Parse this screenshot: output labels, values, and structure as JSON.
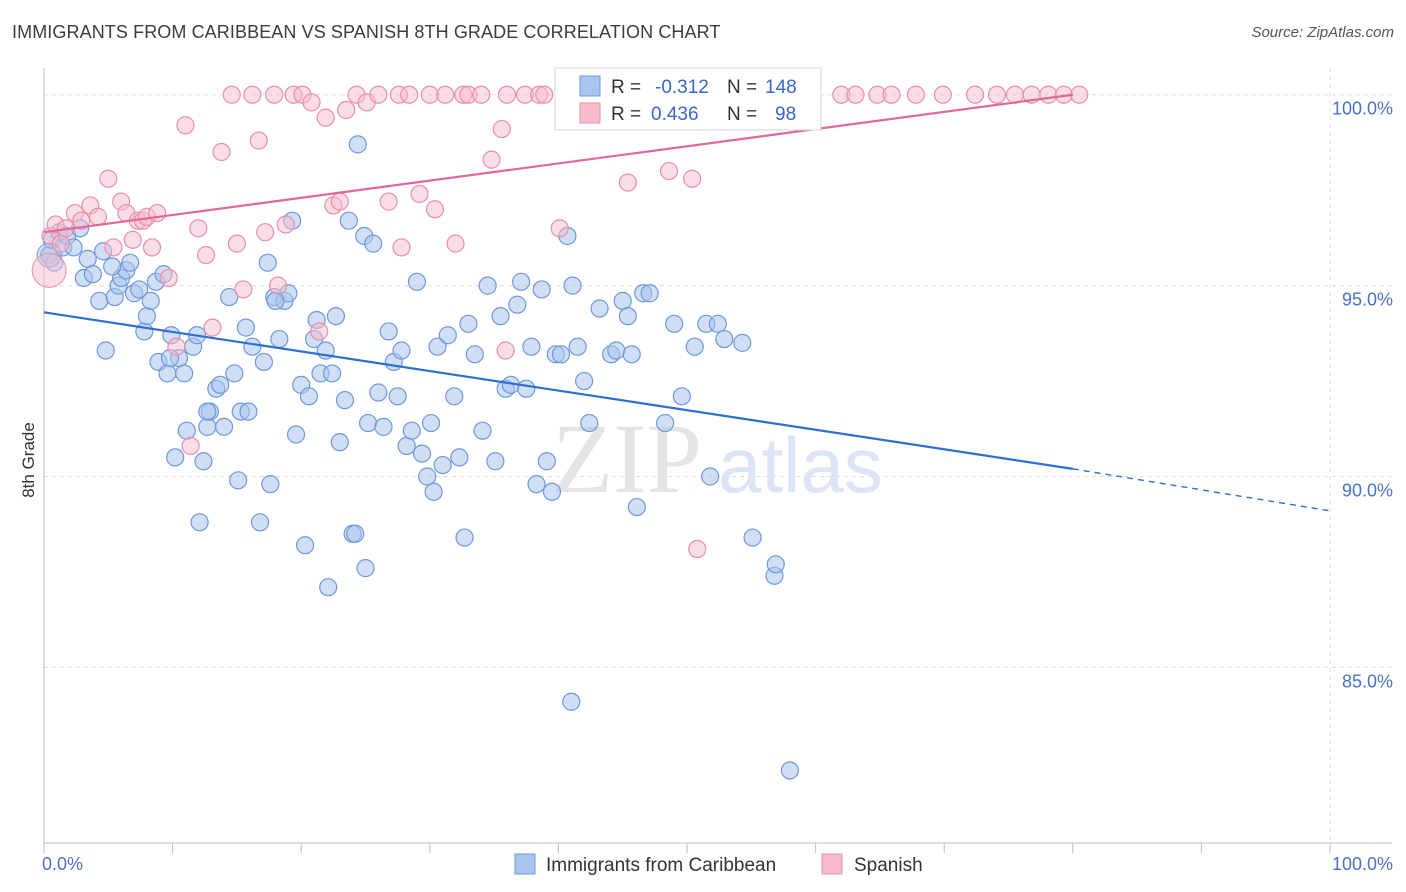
{
  "title": "IMMIGRANTS FROM CARIBBEAN VS SPANISH 8TH GRADE CORRELATION CHART",
  "source": "Source: ZipAtlas.com",
  "watermark": {
    "zip": "ZIP",
    "atlas": "atlas"
  },
  "colors": {
    "blue_fill": "#a9c4ef",
    "blue_stroke": "#6f98dc",
    "blue_line": "#2e6fd0",
    "pink_fill": "#f6bccb",
    "pink_stroke": "#ea8fa8",
    "pink_line": "#e0679a",
    "grid": "#dcdcdc",
    "tick_text": "#4a72c4"
  },
  "legend": {
    "rows": [
      {
        "series": "Immigrants from Caribbean",
        "r_label": "R =",
        "r_value": "-0.312",
        "n_label": "N =",
        "n_value": "148"
      },
      {
        "series": "Spanish",
        "r_label": "R =",
        "r_value": "0.436",
        "n_label": "N =",
        "n_value": "98"
      }
    ]
  },
  "chart_data": {
    "type": "scatter",
    "title": "IMMIGRANTS FROM CARIBBEAN VS SPANISH 8TH GRADE CORRELATION CHART",
    "xlabel": "",
    "ylabel": "8th Grade",
    "xlim": [
      0,
      100
    ],
    "ylim": [
      80.4,
      100.7
    ],
    "x_tick_labels": [
      "0.0%",
      "100.0%"
    ],
    "y_ticks": [
      85,
      90,
      95,
      100
    ],
    "y_tick_labels": [
      "85.0%",
      "90.0%",
      "95.0%",
      "100.0%"
    ],
    "grid": true,
    "legend_position": "bottom-center",
    "series": [
      {
        "name": "Immigrants from Caribbean",
        "color": "#a9c4ef",
        "r": -0.312,
        "n": 148,
        "trend": {
          "x0": 0,
          "y0": 94.3,
          "x1": 80,
          "y1": 90.2,
          "dashed_to_x": 100,
          "dashed_y": 89.1
        },
        "points": [
          [
            0.4,
            95.8
          ],
          [
            0.6,
            96.2
          ],
          [
            0.8,
            95.6
          ],
          [
            1.2,
            96.4
          ],
          [
            1.5,
            96.0
          ],
          [
            1.8,
            96.3
          ],
          [
            2.3,
            96.0
          ],
          [
            2.8,
            96.5
          ],
          [
            3.1,
            95.2
          ],
          [
            3.4,
            95.7
          ],
          [
            3.8,
            95.3
          ],
          [
            4.3,
            94.6
          ],
          [
            4.6,
            95.9
          ],
          [
            4.8,
            93.3
          ],
          [
            5.5,
            94.7
          ],
          [
            5.8,
            95.0
          ],
          [
            6.0,
            95.2
          ],
          [
            6.4,
            95.4
          ],
          [
            6.7,
            95.6
          ],
          [
            7.0,
            94.8
          ],
          [
            7.4,
            94.9
          ],
          [
            7.8,
            93.8
          ],
          [
            8.0,
            94.2
          ],
          [
            8.3,
            94.6
          ],
          [
            8.7,
            95.1
          ],
          [
            8.9,
            93.0
          ],
          [
            9.3,
            95.3
          ],
          [
            9.6,
            92.7
          ],
          [
            9.9,
            93.7
          ],
          [
            10.2,
            90.5
          ],
          [
            10.5,
            93.1
          ],
          [
            10.9,
            92.7
          ],
          [
            11.1,
            91.2
          ],
          [
            11.6,
            93.4
          ],
          [
            11.9,
            93.7
          ],
          [
            12.1,
            88.8
          ],
          [
            12.4,
            90.4
          ],
          [
            12.7,
            91.3
          ],
          [
            12.9,
            91.7
          ],
          [
            13.4,
            92.3
          ],
          [
            13.7,
            92.4
          ],
          [
            14.0,
            91.3
          ],
          [
            14.4,
            94.7
          ],
          [
            14.8,
            92.7
          ],
          [
            15.1,
            89.9
          ],
          [
            15.3,
            91.7
          ],
          [
            15.7,
            93.9
          ],
          [
            15.9,
            91.7
          ],
          [
            16.2,
            93.4
          ],
          [
            16.8,
            88.8
          ],
          [
            17.1,
            93.0
          ],
          [
            17.4,
            95.6
          ],
          [
            17.6,
            89.8
          ],
          [
            17.9,
            94.7
          ],
          [
            18.3,
            93.6
          ],
          [
            18.7,
            94.6
          ],
          [
            19.0,
            94.8
          ],
          [
            19.3,
            96.7
          ],
          [
            19.6,
            91.1
          ],
          [
            20.0,
            92.4
          ],
          [
            20.3,
            88.2
          ],
          [
            20.6,
            92.1
          ],
          [
            21.0,
            93.6
          ],
          [
            21.2,
            94.1
          ],
          [
            21.5,
            92.7
          ],
          [
            21.9,
            93.3
          ],
          [
            22.1,
            87.1
          ],
          [
            22.4,
            92.7
          ],
          [
            22.7,
            94.2
          ],
          [
            23.0,
            90.9
          ],
          [
            23.4,
            92.0
          ],
          [
            23.7,
            96.7
          ],
          [
            24.0,
            88.5
          ],
          [
            24.4,
            98.7
          ],
          [
            24.9,
            96.3
          ],
          [
            25.2,
            91.4
          ],
          [
            25.6,
            96.1
          ],
          [
            26.0,
            92.2
          ],
          [
            26.4,
            91.3
          ],
          [
            26.8,
            93.8
          ],
          [
            27.2,
            93.0
          ],
          [
            27.5,
            92.1
          ],
          [
            27.8,
            93.3
          ],
          [
            28.2,
            90.8
          ],
          [
            28.6,
            91.2
          ],
          [
            29.0,
            95.1
          ],
          [
            29.4,
            90.6
          ],
          [
            29.8,
            90.0
          ],
          [
            30.1,
            91.4
          ],
          [
            30.6,
            93.4
          ],
          [
            31.0,
            90.3
          ],
          [
            31.4,
            93.7
          ],
          [
            31.9,
            92.1
          ],
          [
            32.3,
            90.5
          ],
          [
            32.7,
            88.4
          ],
          [
            33.0,
            94.0
          ],
          [
            33.5,
            93.2
          ],
          [
            34.1,
            91.2
          ],
          [
            34.5,
            95.0
          ],
          [
            35.1,
            90.4
          ],
          [
            35.5,
            94.2
          ],
          [
            35.9,
            92.3
          ],
          [
            36.3,
            92.4
          ],
          [
            36.8,
            94.5
          ],
          [
            37.1,
            95.1
          ],
          [
            37.5,
            92.3
          ],
          [
            37.9,
            93.4
          ],
          [
            38.3,
            89.8
          ],
          [
            38.7,
            94.9
          ],
          [
            39.1,
            90.4
          ],
          [
            39.5,
            89.6
          ],
          [
            39.8,
            93.2
          ],
          [
            40.2,
            93.2
          ],
          [
            40.7,
            96.3
          ],
          [
            41.1,
            95.0
          ],
          [
            41.5,
            93.4
          ],
          [
            42.0,
            92.5
          ],
          [
            42.4,
            91.4
          ],
          [
            41.0,
            84.1
          ],
          [
            43.2,
            94.4
          ],
          [
            44.1,
            93.2
          ],
          [
            44.5,
            93.3
          ],
          [
            45.0,
            94.6
          ],
          [
            45.4,
            94.2
          ],
          [
            45.7,
            93.2
          ],
          [
            46.1,
            89.2
          ],
          [
            46.6,
            94.8
          ],
          [
            47.1,
            94.8
          ],
          [
            48.3,
            91.4
          ],
          [
            49.6,
            92.1
          ],
          [
            49.0,
            94.0
          ],
          [
            50.6,
            93.4
          ],
          [
            51.5,
            94.0
          ],
          [
            51.8,
            90.0
          ],
          [
            52.4,
            94.0
          ],
          [
            52.9,
            93.6
          ],
          [
            54.3,
            93.5
          ],
          [
            55.1,
            88.4
          ],
          [
            56.8,
            87.4
          ],
          [
            56.9,
            87.7
          ],
          [
            58.0,
            82.3
          ],
          [
            24.2,
            88.5
          ],
          [
            25.0,
            87.6
          ],
          [
            30.3,
            89.6
          ],
          [
            18.0,
            94.6
          ],
          [
            12.7,
            91.7
          ],
          [
            9.8,
            93.1
          ],
          [
            5.3,
            95.5
          ]
        ]
      },
      {
        "name": "Spanish",
        "color": "#f6bccb",
        "r": 0.436,
        "n": 98,
        "trend": {
          "x0": 0,
          "y0": 96.4,
          "x1": 80,
          "y1": 100.0
        },
        "points": [
          [
            0.5,
            96.3
          ],
          [
            0.9,
            96.6
          ],
          [
            1.3,
            96.1
          ],
          [
            1.7,
            96.5
          ],
          [
            2.4,
            96.9
          ],
          [
            2.9,
            96.7
          ],
          [
            3.6,
            97.1
          ],
          [
            4.2,
            96.8
          ],
          [
            5.0,
            97.8
          ],
          [
            5.4,
            96.0
          ],
          [
            6.0,
            97.2
          ],
          [
            6.4,
            96.9
          ],
          [
            6.9,
            96.2
          ],
          [
            7.3,
            96.7
          ],
          [
            7.7,
            96.7
          ],
          [
            8.0,
            96.8
          ],
          [
            8.4,
            96.0
          ],
          [
            8.8,
            96.9
          ],
          [
            9.7,
            95.2
          ],
          [
            10.3,
            93.4
          ],
          [
            11.0,
            99.2
          ],
          [
            11.4,
            90.8
          ],
          [
            12.0,
            96.5
          ],
          [
            12.6,
            95.8
          ],
          [
            13.1,
            93.9
          ],
          [
            13.8,
            98.5
          ],
          [
            14.6,
            100.0
          ],
          [
            15.0,
            96.1
          ],
          [
            15.5,
            94.9
          ],
          [
            16.2,
            100.0
          ],
          [
            16.7,
            98.8
          ],
          [
            17.2,
            96.4
          ],
          [
            17.9,
            100.0
          ],
          [
            18.2,
            95.0
          ],
          [
            18.8,
            96.6
          ],
          [
            19.4,
            100.0
          ],
          [
            20.1,
            100.0
          ],
          [
            20.8,
            99.8
          ],
          [
            21.4,
            93.8
          ],
          [
            21.9,
            99.4
          ],
          [
            22.5,
            97.1
          ],
          [
            23.0,
            97.2
          ],
          [
            23.5,
            99.6
          ],
          [
            24.3,
            100.0
          ],
          [
            25.1,
            99.8
          ],
          [
            26.0,
            100.0
          ],
          [
            26.8,
            97.2
          ],
          [
            27.6,
            100.0
          ],
          [
            27.8,
            96.0
          ],
          [
            28.4,
            100.0
          ],
          [
            29.2,
            97.4
          ],
          [
            30.0,
            100.0
          ],
          [
            30.4,
            97.0
          ],
          [
            31.2,
            100.0
          ],
          [
            32.0,
            96.1
          ],
          [
            32.6,
            100.0
          ],
          [
            33.0,
            100.0
          ],
          [
            34.0,
            100.0
          ],
          [
            34.8,
            98.3
          ],
          [
            35.6,
            99.1
          ],
          [
            36.0,
            100.0
          ],
          [
            37.4,
            100.0
          ],
          [
            38.5,
            100.0
          ],
          [
            38.9,
            100.0
          ],
          [
            40.1,
            96.5
          ],
          [
            40.9,
            100.0
          ],
          [
            41.8,
            100.0
          ],
          [
            43.0,
            100.0
          ],
          [
            43.9,
            100.0
          ],
          [
            44.8,
            100.0
          ],
          [
            45.4,
            97.7
          ],
          [
            46.4,
            100.0
          ],
          [
            47.9,
            100.0
          ],
          [
            48.6,
            98.0
          ],
          [
            49.4,
            100.0
          ],
          [
            50.4,
            97.8
          ],
          [
            51.7,
            100.0
          ],
          [
            52.2,
            100.0
          ],
          [
            53.5,
            100.0
          ],
          [
            55.2,
            100.0
          ],
          [
            57.5,
            100.0
          ],
          [
            58.6,
            100.0
          ],
          [
            59.6,
            100.0
          ],
          [
            62.0,
            100.0
          ],
          [
            63.1,
            100.0
          ],
          [
            64.8,
            100.0
          ],
          [
            65.9,
            100.0
          ],
          [
            67.8,
            100.0
          ],
          [
            69.9,
            100.0
          ],
          [
            72.4,
            100.0
          ],
          [
            74.1,
            100.0
          ],
          [
            75.5,
            100.0
          ],
          [
            76.8,
            100.0
          ],
          [
            78.1,
            100.0
          ],
          [
            79.3,
            100.0
          ],
          [
            80.5,
            100.0
          ],
          [
            35.9,
            93.3
          ],
          [
            50.8,
            88.1
          ]
        ]
      }
    ]
  }
}
